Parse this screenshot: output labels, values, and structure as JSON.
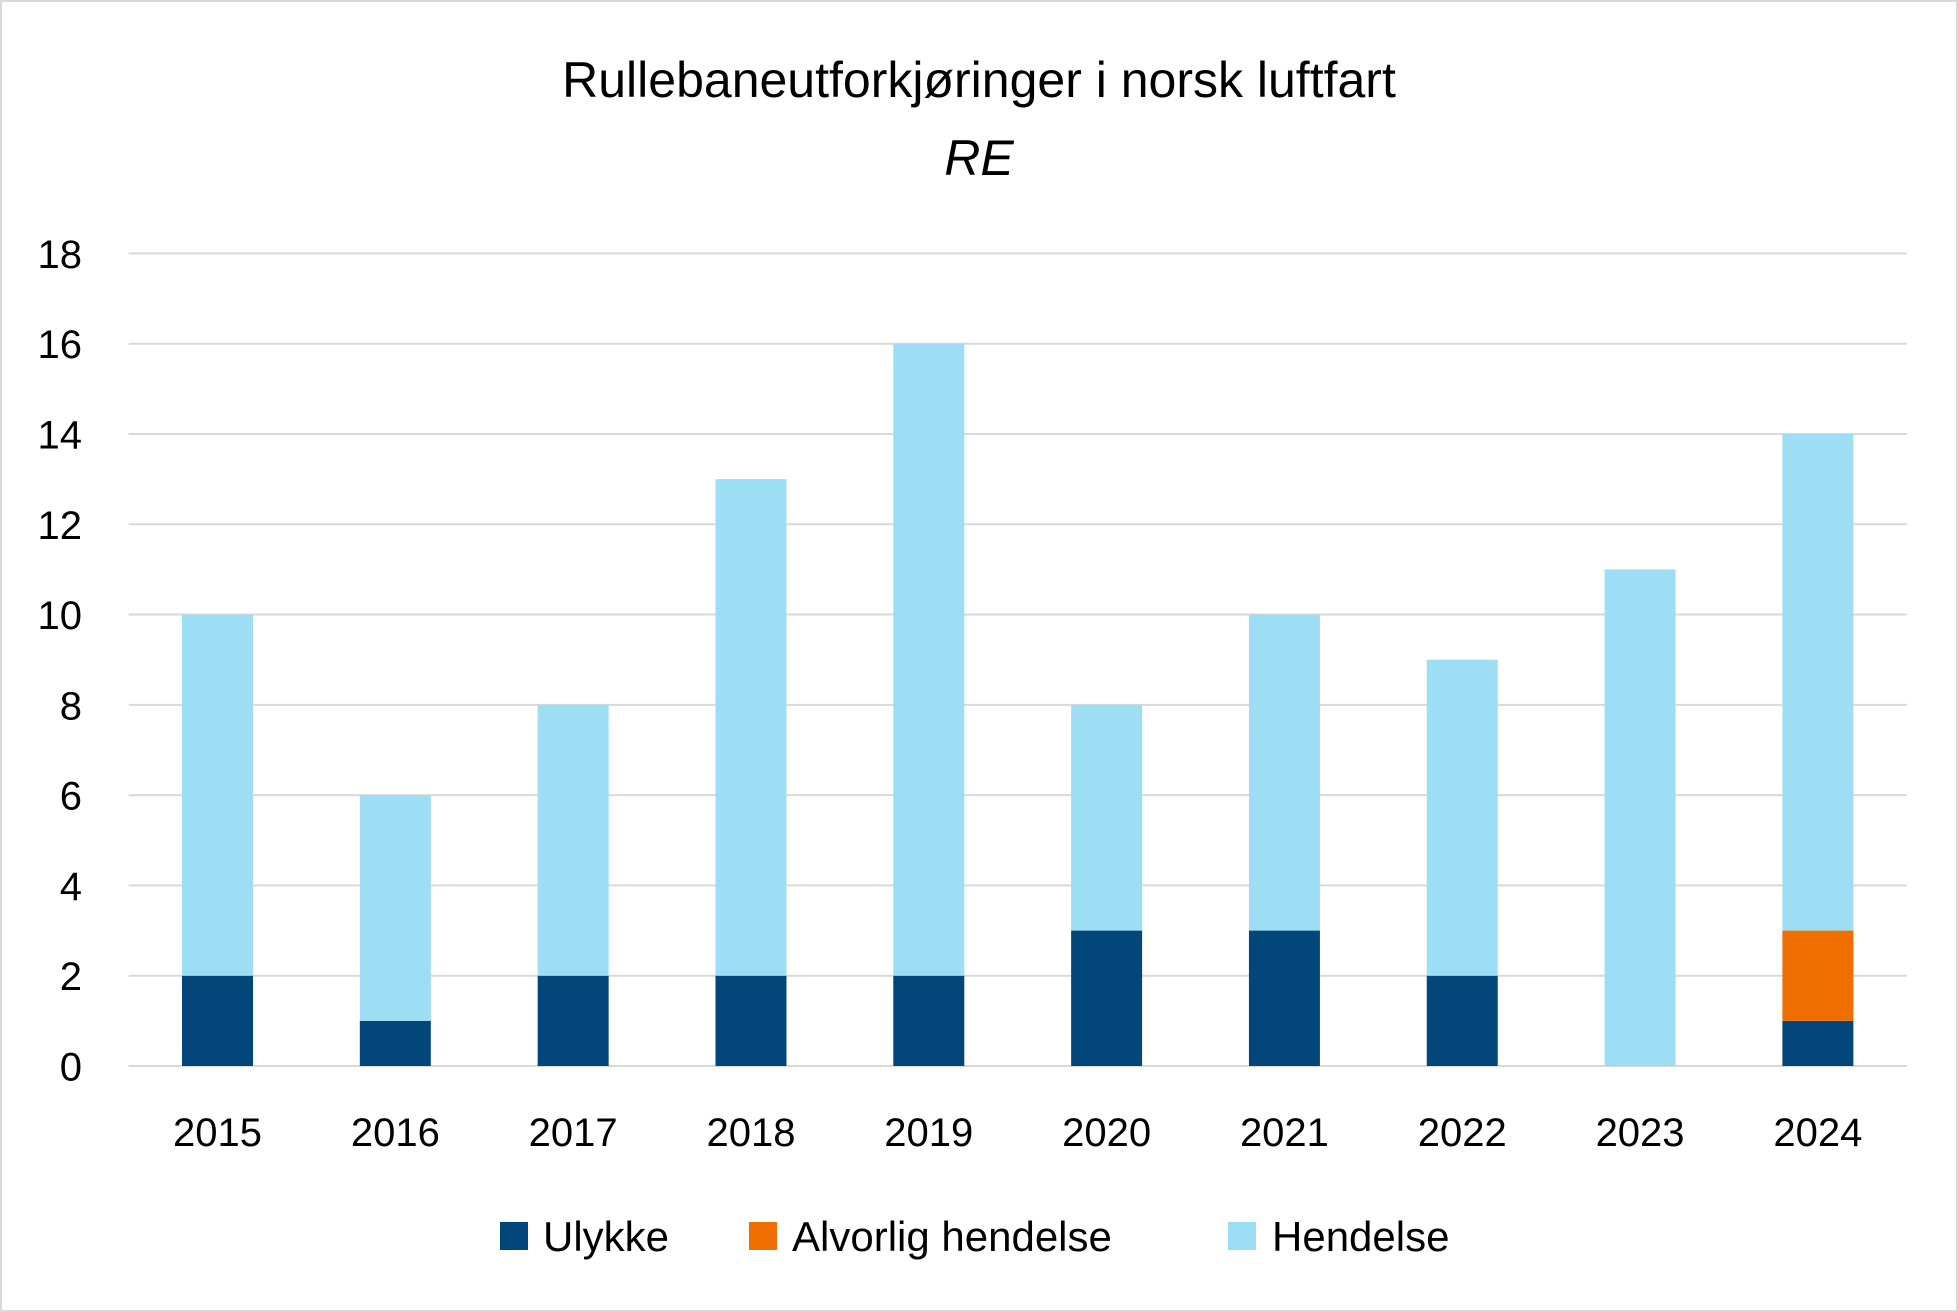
{
  "chart_data": {
    "type": "bar",
    "stacked": true,
    "title": "Rullebaneutforkjøringer i norsk luftfart",
    "subtitle": "RE",
    "categories": [
      "2015",
      "2016",
      "2017",
      "2018",
      "2019",
      "2020",
      "2021",
      "2022",
      "2023",
      "2024"
    ],
    "series": [
      {
        "name": "Ulykke",
        "color": "#02467A",
        "values": [
          2,
          1,
          2,
          2,
          2,
          3,
          3,
          2,
          0,
          1
        ]
      },
      {
        "name": "Alvorlig hendelse",
        "color": "#EE6E00",
        "values": [
          0,
          0,
          0,
          0,
          0,
          0,
          0,
          0,
          0,
          2
        ]
      },
      {
        "name": "Hendelse",
        "color": "#9EDEF4",
        "values": [
          8,
          5,
          6,
          11,
          14,
          5,
          7,
          7,
          11,
          11
        ]
      }
    ],
    "ylim": [
      0,
      18
    ],
    "yticks": [
      "0",
      "2",
      "4",
      "6",
      "8",
      "10",
      "12",
      "14",
      "16",
      "18"
    ],
    "grid": true,
    "legend_position": "bottom",
    "colors": {
      "grid": "#D9D9D9",
      "border": "#D9D9D9",
      "text": "#000000"
    }
  }
}
